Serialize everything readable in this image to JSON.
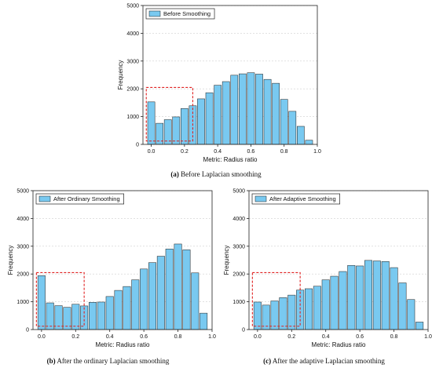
{
  "chart_data": [
    {
      "type": "bar",
      "caption_letter": "(a)",
      "caption_text": "Before Laplacian smoothing",
      "xlabel": "Metric: Radius ratio",
      "ylabel": "Frequency",
      "legend": "Before Smoothing",
      "legend_position": "top-left",
      "xlim": [
        -0.05,
        1.0
      ],
      "ylim": [
        0,
        5000
      ],
      "xticks": [
        "0.0",
        "0.2",
        "0.4",
        "0.6",
        "0.8",
        "1.0"
      ],
      "yticks": [
        "0",
        "1000",
        "2000",
        "3000",
        "4000",
        "5000"
      ],
      "grid": true,
      "bar_color": "#79c9f0",
      "highlight_box_color": "#e02020",
      "highlight_box": {
        "x": [
          -0.03,
          0.25
        ],
        "y": [
          120,
          2050
        ]
      },
      "bin_width": 0.05,
      "x": [
        0.0,
        0.05,
        0.1,
        0.15,
        0.2,
        0.25,
        0.3,
        0.35,
        0.4,
        0.45,
        0.5,
        0.55,
        0.6,
        0.65,
        0.7,
        0.75,
        0.8,
        0.85,
        0.9,
        0.95
      ],
      "values": [
        1530,
        760,
        890,
        990,
        1290,
        1390,
        1640,
        1860,
        2130,
        2260,
        2490,
        2540,
        2580,
        2530,
        2340,
        2200,
        1620,
        1190,
        650,
        150
      ]
    },
    {
      "type": "bar",
      "caption_letter": "(b)",
      "caption_text": "After the ordinary Laplacian smoothing",
      "xlabel": "Metric: Radius ratio",
      "ylabel": "Frequency",
      "legend": "After Ordinary Smoothing",
      "legend_position": "top-left",
      "xlim": [
        -0.05,
        1.0
      ],
      "ylim": [
        0,
        5000
      ],
      "xticks": [
        "0.0",
        "0.2",
        "0.4",
        "0.6",
        "0.8",
        "1.0"
      ],
      "yticks": [
        "0",
        "1000",
        "2000",
        "3000",
        "4000",
        "5000"
      ],
      "grid": true,
      "bar_color": "#79c9f0",
      "highlight_box_color": "#e02020",
      "highlight_box": {
        "x": [
          -0.03,
          0.25
        ],
        "y": [
          120,
          2050
        ]
      },
      "bin_width": 0.05,
      "x": [
        0.0,
        0.05,
        0.1,
        0.15,
        0.2,
        0.25,
        0.3,
        0.35,
        0.4,
        0.45,
        0.5,
        0.55,
        0.6,
        0.65,
        0.7,
        0.75,
        0.8,
        0.85,
        0.9,
        0.95
      ],
      "values": [
        1940,
        960,
        860,
        800,
        910,
        850,
        980,
        990,
        1190,
        1410,
        1550,
        1790,
        2180,
        2410,
        2640,
        2900,
        3080,
        2870,
        2040,
        590
      ]
    },
    {
      "type": "bar",
      "caption_letter": "(c)",
      "caption_text": "After the adaptive Laplacian smoothing",
      "xlabel": "Metric: Radius ratio",
      "ylabel": "Frequency",
      "legend": "After Adaptive Smoothing",
      "legend_position": "top-left",
      "xlim": [
        -0.05,
        1.0
      ],
      "ylim": [
        0,
        5000
      ],
      "xticks": [
        "0.0",
        "0.2",
        "0.4",
        "0.6",
        "0.8",
        "1.0"
      ],
      "yticks": [
        "0",
        "1000",
        "2000",
        "3000",
        "4000",
        "5000"
      ],
      "grid": true,
      "bar_color": "#79c9f0",
      "highlight_box_color": "#e02020",
      "highlight_box": {
        "x": [
          -0.03,
          0.25
        ],
        "y": [
          120,
          2050
        ]
      },
      "bin_width": 0.05,
      "x": [
        0.0,
        0.05,
        0.1,
        0.15,
        0.2,
        0.25,
        0.3,
        0.35,
        0.4,
        0.45,
        0.5,
        0.55,
        0.6,
        0.65,
        0.7,
        0.75,
        0.8,
        0.85,
        0.9,
        0.95
      ],
      "values": [
        990,
        880,
        1030,
        1150,
        1240,
        1420,
        1470,
        1560,
        1790,
        1920,
        2090,
        2310,
        2290,
        2490,
        2470,
        2450,
        2230,
        1680,
        1080,
        270
      ]
    }
  ]
}
